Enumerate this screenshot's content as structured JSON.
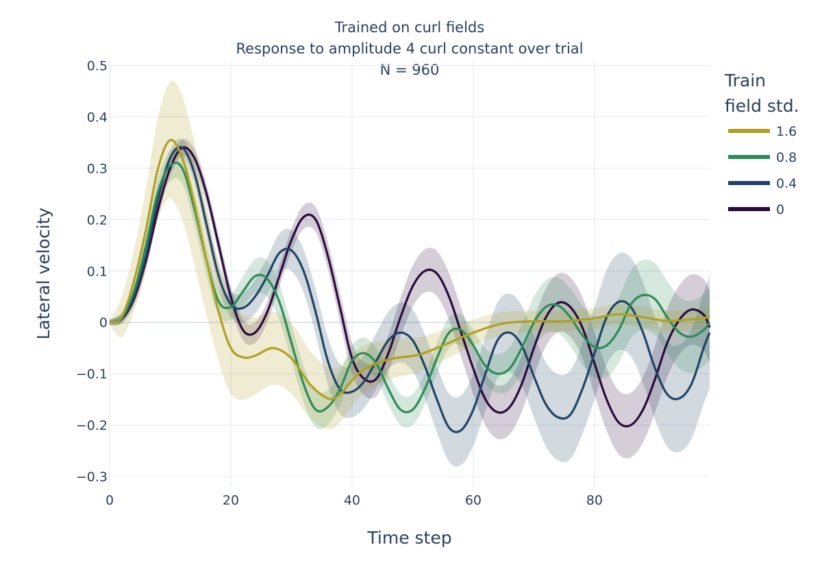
{
  "chart_data": {
    "type": "line",
    "title_lines": [
      "Trained on curl fields",
      "Response to amplitude 4 curl constant over trial",
      "N = 960"
    ],
    "xlabel": "Time step",
    "ylabel": "Lateral velocity",
    "xlim": [
      0,
      99
    ],
    "ylim": [
      -0.32,
      0.51
    ],
    "xticks": [
      0,
      20,
      40,
      60,
      80
    ],
    "xtick_labels": [
      "0",
      "20",
      "40",
      "60",
      "80"
    ],
    "yticks": [
      0.5,
      0.4,
      0.3,
      0.2,
      0.1,
      0,
      -0.1,
      -0.2,
      -0.3
    ],
    "ytick_labels": [
      "0.5",
      "0.4",
      "0.3",
      "0.2",
      "0.1",
      "0",
      "−0.1",
      "−0.2",
      "−0.3"
    ],
    "grid": true,
    "legend": {
      "title_lines": [
        "Train",
        "field std."
      ],
      "placement": "right"
    },
    "series": [
      {
        "name": "1.6",
        "color": "#b0a021",
        "points": [
          [
            0,
            0
          ],
          [
            2,
            0.01
          ],
          [
            4,
            0.08
          ],
          [
            6,
            0.18
          ],
          [
            8,
            0.3
          ],
          [
            10,
            0.355
          ],
          [
            12,
            0.32
          ],
          [
            14,
            0.23
          ],
          [
            16,
            0.12
          ],
          [
            18,
            0.02
          ],
          [
            20,
            -0.05
          ],
          [
            22,
            -0.068
          ],
          [
            24,
            -0.065
          ],
          [
            27,
            -0.05
          ],
          [
            30,
            -0.07
          ],
          [
            33,
            -0.12
          ],
          [
            36,
            -0.148
          ],
          [
            38,
            -0.14
          ],
          [
            41,
            -0.1
          ],
          [
            44,
            -0.08
          ],
          [
            47,
            -0.07
          ],
          [
            51,
            -0.063
          ],
          [
            55,
            -0.045
          ],
          [
            60,
            -0.02
          ],
          [
            65,
            -0.002
          ],
          [
            70,
            0.002
          ],
          [
            75,
            0.002
          ],
          [
            80,
            0.008
          ],
          [
            84,
            0.016
          ],
          [
            88,
            0.01
          ],
          [
            92,
            0.003
          ],
          [
            96,
            0.006
          ],
          [
            99,
            0.01
          ]
        ],
        "band_width": [
          [
            0,
            0.005
          ],
          [
            2,
            0.04
          ],
          [
            5,
            0.07
          ],
          [
            8,
            0.1
          ],
          [
            11,
            0.12
          ],
          [
            14,
            0.12
          ],
          [
            17,
            0.1
          ],
          [
            20,
            0.09
          ],
          [
            24,
            0.075
          ],
          [
            28,
            0.07
          ],
          [
            32,
            0.068
          ],
          [
            36,
            0.06
          ],
          [
            40,
            0.05
          ],
          [
            45,
            0.04
          ],
          [
            50,
            0.035
          ],
          [
            55,
            0.03
          ],
          [
            60,
            0.025
          ],
          [
            70,
            0.02
          ],
          [
            80,
            0.02
          ],
          [
            90,
            0.02
          ],
          [
            99,
            0.02
          ]
        ]
      },
      {
        "name": "0.8",
        "color": "#2e8b57",
        "points": [
          [
            0,
            0
          ],
          [
            2,
            0.01
          ],
          [
            4,
            0.06
          ],
          [
            6,
            0.15
          ],
          [
            8,
            0.255
          ],
          [
            10,
            0.305
          ],
          [
            12,
            0.3
          ],
          [
            14,
            0.22
          ],
          [
            16,
            0.12
          ],
          [
            18,
            0.04
          ],
          [
            20,
            0.03
          ],
          [
            22,
            0.06
          ],
          [
            24,
            0.09
          ],
          [
            26,
            0.085
          ],
          [
            28,
            0.04
          ],
          [
            30,
            -0.04
          ],
          [
            32,
            -0.12
          ],
          [
            34,
            -0.17
          ],
          [
            36,
            -0.165
          ],
          [
            38,
            -0.13
          ],
          [
            40,
            -0.075
          ],
          [
            42,
            -0.06
          ],
          [
            44,
            -0.08
          ],
          [
            46,
            -0.13
          ],
          [
            48,
            -0.17
          ],
          [
            50,
            -0.17
          ],
          [
            52,
            -0.13
          ],
          [
            54,
            -0.07
          ],
          [
            56,
            -0.02
          ],
          [
            58,
            -0.015
          ],
          [
            60,
            -0.045
          ],
          [
            62,
            -0.085
          ],
          [
            64,
            -0.1
          ],
          [
            66,
            -0.09
          ],
          [
            68,
            -0.05
          ],
          [
            70,
            0
          ],
          [
            72,
            0.03
          ],
          [
            74,
            0.033
          ],
          [
            76,
            0.01
          ],
          [
            78,
            -0.025
          ],
          [
            80,
            -0.048
          ],
          [
            82,
            -0.045
          ],
          [
            84,
            -0.015
          ],
          [
            86,
            0.035
          ],
          [
            88,
            0.053
          ],
          [
            90,
            0.045
          ],
          [
            92,
            0.01
          ],
          [
            94,
            -0.02
          ],
          [
            96,
            -0.028
          ],
          [
            98,
            -0.015
          ],
          [
            99,
            0
          ]
        ],
        "band_width": [
          [
            0,
            0.005
          ],
          [
            5,
            0.02
          ],
          [
            10,
            0.03
          ],
          [
            15,
            0.03
          ],
          [
            20,
            0.025
          ],
          [
            25,
            0.035
          ],
          [
            30,
            0.035
          ],
          [
            35,
            0.035
          ],
          [
            40,
            0.03
          ],
          [
            45,
            0.03
          ],
          [
            50,
            0.03
          ],
          [
            55,
            0.03
          ],
          [
            60,
            0.03
          ],
          [
            70,
            0.05
          ],
          [
            80,
            0.06
          ],
          [
            90,
            0.07
          ],
          [
            99,
            0.07
          ]
        ]
      },
      {
        "name": "0.4",
        "color": "#1f4566",
        "points": [
          [
            0,
            0
          ],
          [
            2,
            0.008
          ],
          [
            4,
            0.05
          ],
          [
            6,
            0.13
          ],
          [
            8,
            0.24
          ],
          [
            10,
            0.32
          ],
          [
            12,
            0.34
          ],
          [
            14,
            0.29
          ],
          [
            16,
            0.19
          ],
          [
            18,
            0.09
          ],
          [
            20,
            0.035
          ],
          [
            22,
            0.028
          ],
          [
            24,
            0.05
          ],
          [
            26,
            0.09
          ],
          [
            28,
            0.135
          ],
          [
            30,
            0.14
          ],
          [
            32,
            0.1
          ],
          [
            34,
            0.02
          ],
          [
            36,
            -0.075
          ],
          [
            38,
            -0.13
          ],
          [
            40,
            -0.135
          ],
          [
            42,
            -0.115
          ],
          [
            44,
            -0.075
          ],
          [
            46,
            -0.035
          ],
          [
            48,
            -0.02
          ],
          [
            50,
            -0.035
          ],
          [
            52,
            -0.085
          ],
          [
            54,
            -0.15
          ],
          [
            56,
            -0.205
          ],
          [
            58,
            -0.21
          ],
          [
            60,
            -0.17
          ],
          [
            62,
            -0.1
          ],
          [
            64,
            -0.035
          ],
          [
            66,
            -0.02
          ],
          [
            68,
            -0.045
          ],
          [
            70,
            -0.105
          ],
          [
            72,
            -0.16
          ],
          [
            74,
            -0.185
          ],
          [
            76,
            -0.18
          ],
          [
            78,
            -0.13
          ],
          [
            80,
            -0.06
          ],
          [
            82,
            0.01
          ],
          [
            84,
            0.04
          ],
          [
            86,
            0.03
          ],
          [
            88,
            -0.02
          ],
          [
            90,
            -0.09
          ],
          [
            92,
            -0.14
          ],
          [
            94,
            -0.148
          ],
          [
            96,
            -0.12
          ],
          [
            98,
            -0.05
          ],
          [
            99,
            -0.02
          ]
        ],
        "band_width": [
          [
            0,
            0.005
          ],
          [
            5,
            0.015
          ],
          [
            10,
            0.015
          ],
          [
            15,
            0.02
          ],
          [
            20,
            0.025
          ],
          [
            25,
            0.035
          ],
          [
            30,
            0.04
          ],
          [
            35,
            0.045
          ],
          [
            40,
            0.05
          ],
          [
            45,
            0.055
          ],
          [
            50,
            0.06
          ],
          [
            55,
            0.065
          ],
          [
            60,
            0.07
          ],
          [
            70,
            0.08
          ],
          [
            80,
            0.09
          ],
          [
            90,
            0.1
          ],
          [
            99,
            0.11
          ]
        ]
      },
      {
        "name": "0",
        "color": "#2b0a3d",
        "points": [
          [
            0,
            0
          ],
          [
            2,
            0.007
          ],
          [
            4,
            0.045
          ],
          [
            6,
            0.12
          ],
          [
            8,
            0.22
          ],
          [
            10,
            0.3
          ],
          [
            12,
            0.34
          ],
          [
            14,
            0.32
          ],
          [
            16,
            0.25
          ],
          [
            18,
            0.15
          ],
          [
            20,
            0.05
          ],
          [
            22,
            -0.015
          ],
          [
            24,
            -0.02
          ],
          [
            26,
            0.02
          ],
          [
            28,
            0.09
          ],
          [
            30,
            0.16
          ],
          [
            32,
            0.205
          ],
          [
            34,
            0.2
          ],
          [
            36,
            0.13
          ],
          [
            38,
            0.03
          ],
          [
            40,
            -0.07
          ],
          [
            42,
            -0.11
          ],
          [
            44,
            -0.11
          ],
          [
            46,
            -0.06
          ],
          [
            48,
            0.01
          ],
          [
            50,
            0.07
          ],
          [
            52,
            0.1
          ],
          [
            54,
            0.095
          ],
          [
            56,
            0.05
          ],
          [
            58,
            -0.02
          ],
          [
            60,
            -0.09
          ],
          [
            62,
            -0.15
          ],
          [
            64,
            -0.175
          ],
          [
            66,
            -0.165
          ],
          [
            68,
            -0.12
          ],
          [
            70,
            -0.05
          ],
          [
            72,
            0.01
          ],
          [
            74,
            0.038
          ],
          [
            76,
            0.03
          ],
          [
            78,
            -0.01
          ],
          [
            80,
            -0.08
          ],
          [
            82,
            -0.15
          ],
          [
            84,
            -0.195
          ],
          [
            86,
            -0.2
          ],
          [
            88,
            -0.17
          ],
          [
            90,
            -0.11
          ],
          [
            92,
            -0.04
          ],
          [
            94,
            0.005
          ],
          [
            96,
            0.025
          ],
          [
            98,
            0.015
          ],
          [
            99,
            -0.01
          ]
        ],
        "band_width": [
          [
            0,
            0.005
          ],
          [
            5,
            0.015
          ],
          [
            10,
            0.015
          ],
          [
            15,
            0.018
          ],
          [
            20,
            0.02
          ],
          [
            25,
            0.02
          ],
          [
            30,
            0.022
          ],
          [
            35,
            0.025
          ],
          [
            40,
            0.03
          ],
          [
            45,
            0.035
          ],
          [
            50,
            0.04
          ],
          [
            55,
            0.045
          ],
          [
            60,
            0.05
          ],
          [
            70,
            0.055
          ],
          [
            80,
            0.06
          ],
          [
            90,
            0.065
          ],
          [
            99,
            0.07
          ]
        ]
      }
    ]
  }
}
